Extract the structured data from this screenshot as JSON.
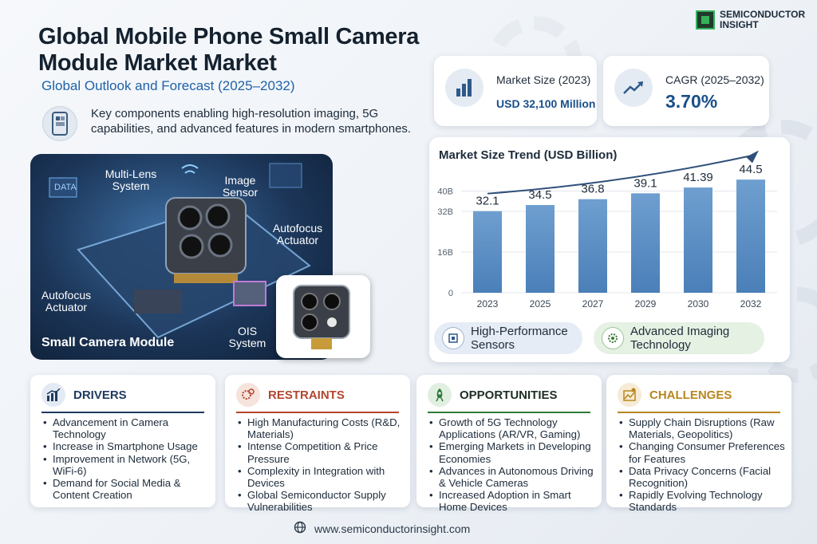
{
  "header": {
    "title": "Global Mobile Phone Small Camera Module Market Market",
    "subtitle": "Global Outlook and Forecast (2025–2032)",
    "description": "Key components enabling high-resolution imaging, 5G capabilities, and advanced features in modern smartphones."
  },
  "logo": {
    "line1": "SEMICONDUCTOR",
    "line2": "INSIGHT"
  },
  "stats": {
    "market_size": {
      "label": "Market Size (2023)",
      "value": "USD 32,100 Million"
    },
    "cagr": {
      "label": "CAGR (2025–2032)",
      "value": "3.70%"
    }
  },
  "hero": {
    "labels": {
      "multi_lens": "Multi-Lens System",
      "image_sensor": "Image Sensor",
      "autofocus_right": "Autofocus Actuator",
      "autofocus_left": "Autofocus Actuator",
      "ois": "OIS System",
      "data_tag": "DATA"
    },
    "title": "Small Camera Module"
  },
  "chart_data": {
    "type": "bar",
    "title": "Market Size Trend (USD Billion)",
    "categories": [
      "2023",
      "2025",
      "2027",
      "2029",
      "2030",
      "2032"
    ],
    "values": [
      32.1,
      34.5,
      36.8,
      39.1,
      41.39,
      44.5
    ],
    "value_labels": [
      "32.1",
      "34.5",
      "36.8",
      "39.1",
      "41.39",
      "44.5"
    ],
    "yticks": [
      "0",
      "16B",
      "32B",
      "40B"
    ],
    "ylim": [
      0,
      48
    ],
    "grid": true,
    "colors": {
      "bar_top": "#6f9fd0",
      "bar_bottom": "#4a7fb8",
      "trend_arrow": "#2f4f7a"
    }
  },
  "features": [
    {
      "label": "High-Performance Sensors",
      "icon": "chip-icon"
    },
    {
      "label": "Advanced Imaging Technology",
      "icon": "gear-icon"
    }
  ],
  "panels": {
    "drivers": {
      "title": "DRIVERS",
      "color": "#1f3a5f",
      "items": [
        "Advancement in Camera Technology",
        "Increase in Smartphone Usage",
        "Improvement in Network (5G, WiFi-6)",
        "Demand for Social Media & Content Creation"
      ]
    },
    "restraints": {
      "title": "RESTRAINTS",
      "color": "#b5462f",
      "items": [
        "High Manufacturing Costs (R&D, Materials)",
        "Intense Competition & Price Pressure",
        "Complexity in Integration with Devices",
        "Global Semiconductor Supply Vulnerabilities"
      ]
    },
    "opportunities": {
      "title": "OPPORTUNITIES",
      "color": "#2f7a3a",
      "items": [
        "Growth of 5G Technology Applications (AR/VR, Gaming)",
        "Emerging Markets in Developing Economies",
        "Advances in Autonomous Driving & Vehicle Cameras",
        "Increased Adoption in Smart Home Devices"
      ]
    },
    "challenges": {
      "title": "CHALLENGES",
      "color": "#b8861f",
      "items": [
        "Supply Chain Disruptions (Raw Materials, Geopolitics)",
        "Changing Consumer Preferences for Features",
        "Data Privacy Concerns (Facial Recognition)",
        "Rapidly Evolving Technology Standards"
      ]
    }
  },
  "footer": {
    "url": "www.semiconductorinsight.com"
  }
}
